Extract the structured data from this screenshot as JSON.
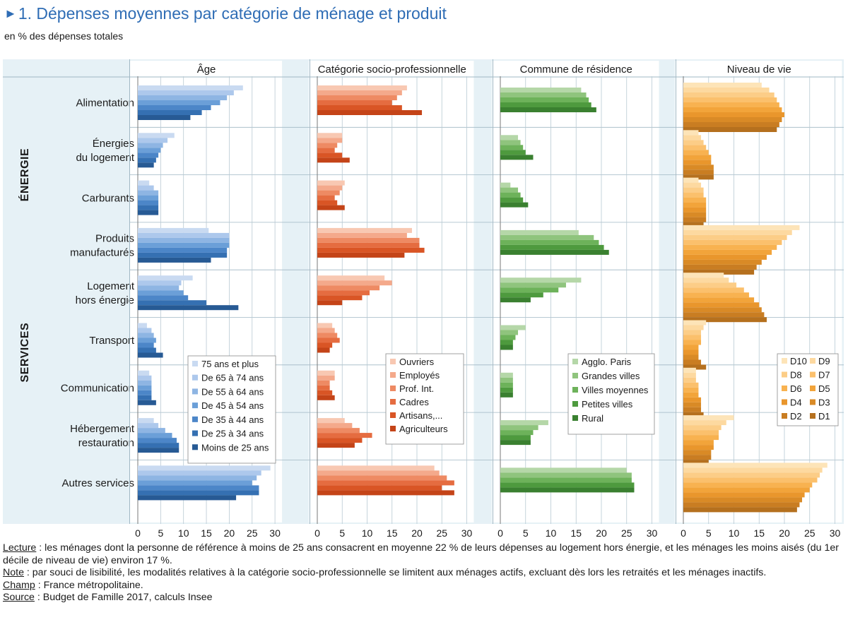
{
  "figure": {
    "number": "1.",
    "title": "Dépenses moyennes par catégorie de ménage et produit",
    "subtitle": "en % des dépenses totales"
  },
  "chart_data": {
    "type": "bar",
    "orientation": "horizontal",
    "unit": "en % des dépenses totales",
    "categories": [
      "Alimentation",
      "Énergies du logement",
      "Carburants",
      "Produits manufacturés",
      "Logement hors énergie",
      "Transport",
      "Communication",
      "Hébergement restauration",
      "Autres services"
    ],
    "category_lines": [
      [
        "Alimentation"
      ],
      [
        "Énergies",
        "du logement"
      ],
      [
        "Carburants"
      ],
      [
        "Produits",
        "manufacturés"
      ],
      [
        "Logement",
        "hors énergie"
      ],
      [
        "Transport"
      ],
      [
        "Communication"
      ],
      [
        "Hébergement",
        "restauration"
      ],
      [
        "Autres services"
      ]
    ],
    "groups": [
      {
        "label": "ÉNERGIE",
        "categories": [
          "Énergies du logement",
          "Carburants"
        ]
      },
      {
        "label": "SERVICES",
        "categories": [
          "Logement hors énergie",
          "Transport",
          "Communication",
          "Hébergement restauration",
          "Autres services"
        ]
      }
    ],
    "xlim": [
      0,
      30
    ],
    "x_ticks": [
      0,
      5,
      10,
      15,
      20,
      25,
      30
    ],
    "panels": [
      {
        "title": "Âge",
        "legend_cols": 1,
        "series": [
          {
            "name": "75 ans et plus",
            "color": "#c9daf1",
            "values": [
              23,
              8,
              2.5,
              15.5,
              12,
              2,
              2.5,
              3.5,
              29
            ]
          },
          {
            "name": "De 65 à 74 ans",
            "color": "#adc8ec",
            "values": [
              21,
              6.5,
              3.5,
              20,
              9.5,
              3,
              3,
              4.5,
              27
            ]
          },
          {
            "name": "De 55 à 64 ans",
            "color": "#8eb5e3",
            "values": [
              19.5,
              5.5,
              4.5,
              20,
              9,
              3.5,
              3,
              6,
              26
            ]
          },
          {
            "name": "De 45 à 54 ans",
            "color": "#6b9fd8",
            "values": [
              18,
              5,
              4.5,
              20,
              10,
              4,
              3,
              7.5,
              25
            ]
          },
          {
            "name": "De 35 à 44 ans",
            "color": "#4c86c8",
            "values": [
              16,
              4.5,
              4.5,
              19.5,
              11,
              3.5,
              3,
              8.5,
              26.5
            ]
          },
          {
            "name": "De 25 à 34 ans",
            "color": "#3570b2",
            "values": [
              14,
              4,
              4.5,
              19.5,
              15,
              4,
              3,
              9,
              26.5
            ]
          },
          {
            "name": "Moins de 25 ans",
            "color": "#275a94",
            "values": [
              11.5,
              3.5,
              4.5,
              16,
              22,
              5.5,
              4,
              9,
              21.5
            ]
          }
        ]
      },
      {
        "title": "Catégorie socio-professionnelle",
        "legend_cols": 1,
        "series": [
          {
            "name": "Ouvriers",
            "color": "#f8c8b2",
            "values": [
              18,
              5,
              5.5,
              19,
              13.5,
              3,
              3.5,
              5.5,
              23.5
            ]
          },
          {
            "name": "Employés",
            "color": "#f4a98b",
            "values": [
              17,
              5,
              5,
              18,
              15,
              3.5,
              3.5,
              7,
              24.5
            ]
          },
          {
            "name": "Prof. Int.",
            "color": "#ee8a63",
            "values": [
              16,
              4,
              4.5,
              20.5,
              12.5,
              4,
              2.5,
              8.5,
              26
            ]
          },
          {
            "name": "Cadres",
            "color": "#e56c40",
            "values": [
              15,
              3.5,
              3.5,
              20.5,
              10.5,
              4.5,
              2.5,
              11,
              27.5
            ]
          },
          {
            "name": "Artisans,...",
            "color": "#d95525",
            "values": [
              17,
              5,
              4,
              21.5,
              9,
              3,
              3,
              9,
              25
            ]
          },
          {
            "name": "Agriculteurs",
            "color": "#c44418",
            "values": [
              21,
              6.5,
              5.5,
              17.5,
              5,
              2.5,
              3.5,
              7.5,
              27.5
            ]
          }
        ]
      },
      {
        "title": "Commune de résidence",
        "legend_cols": 1,
        "series": [
          {
            "name": "Agglo. Paris",
            "color": "#b5d7a8",
            "values": [
              16,
              3.5,
              2,
              15.5,
              16,
              5,
              2.5,
              9.5,
              25
            ]
          },
          {
            "name": "Grandes villes",
            "color": "#8fc47d",
            "values": [
              17,
              4,
              3.5,
              18.5,
              13,
              3.5,
              2.5,
              7.5,
              26
            ]
          },
          {
            "name": "Villes moyennes",
            "color": "#6db25a",
            "values": [
              17.5,
              4.5,
              4,
              19.5,
              11.5,
              3,
              2.5,
              6.5,
              26
            ]
          },
          {
            "name": "Petites villes",
            "color": "#4e9a3e",
            "values": [
              18,
              5,
              4.5,
              20.5,
              8.5,
              2.5,
              2.5,
              6,
              26.5
            ]
          },
          {
            "name": "Rural",
            "color": "#3a8030",
            "values": [
              19,
              6.5,
              5.5,
              21.5,
              6,
              2.5,
              2.5,
              6,
              26.5
            ]
          }
        ]
      },
      {
        "title": "Niveau de vie",
        "legend_cols": 2,
        "series": [
          {
            "name": "D10",
            "color": "#fde4b8",
            "values": [
              15.5,
              3,
              3,
              23,
              8,
              4.5,
              2.5,
              10,
              28.5
            ]
          },
          {
            "name": "D9",
            "color": "#fdd9a0",
            "values": [
              17,
              3.5,
              3.5,
              21.5,
              9,
              4,
              2.5,
              8.5,
              27.5
            ]
          },
          {
            "name": "D8",
            "color": "#fccd87",
            "values": [
              18,
              4,
              4,
              20.5,
              10.5,
              3.5,
              2.5,
              7.5,
              27
            ]
          },
          {
            "name": "D7",
            "color": "#fbc06c",
            "values": [
              18.5,
              4.5,
              4,
              19.5,
              12,
              3.5,
              3,
              7,
              26.5
            ]
          },
          {
            "name": "D6",
            "color": "#f8b250",
            "values": [
              19,
              5,
              4.5,
              18.5,
              13,
              3.5,
              3,
              7,
              25.5
            ]
          },
          {
            "name": "D5",
            "color": "#f2a43a",
            "values": [
              19.5,
              5.5,
              4.5,
              17.5,
              14,
              3,
              3,
              6,
              25
            ]
          },
          {
            "name": "D4",
            "color": "#e9962c",
            "values": [
              20,
              5.5,
              4.5,
              16.5,
              15,
              3,
              3.5,
              6,
              24
            ]
          },
          {
            "name": "D3",
            "color": "#d98a26",
            "values": [
              19.5,
              6,
              4.5,
              15.5,
              15.5,
              3,
              3.5,
              5.5,
              23.5
            ]
          },
          {
            "name": "D2",
            "color": "#c97d22",
            "values": [
              19,
              6,
              4.5,
              14.5,
              16,
              3.5,
              3.5,
              5.5,
              23
            ]
          },
          {
            "name": "D1",
            "color": "#b5701e",
            "values": [
              18.5,
              6,
              4,
              14,
              16.5,
              4.5,
              4,
              5,
              22.5
            ]
          }
        ]
      }
    ]
  },
  "notes": [
    {
      "label": "Lecture",
      "text": " : les ménages dont la personne de référence à moins de 25 ans consacrent en moyenne 22 % de leurs dépenses au logement hors énergie, et les ménages les moins aisés (du 1er décile de niveau de vie) environ 17 %."
    },
    {
      "label": "Note",
      "text": " : par souci de lisibilité, les modalités relatives à la catégorie socio-professionnelle se limitent aux ménages actifs, excluant dès lors les retraités et les ménages inactifs."
    },
    {
      "label": "Champ",
      "text": " : France métropolitaine."
    },
    {
      "label": "Source",
      "text": " : Budget de Famille 2017, calculs Insee"
    }
  ]
}
